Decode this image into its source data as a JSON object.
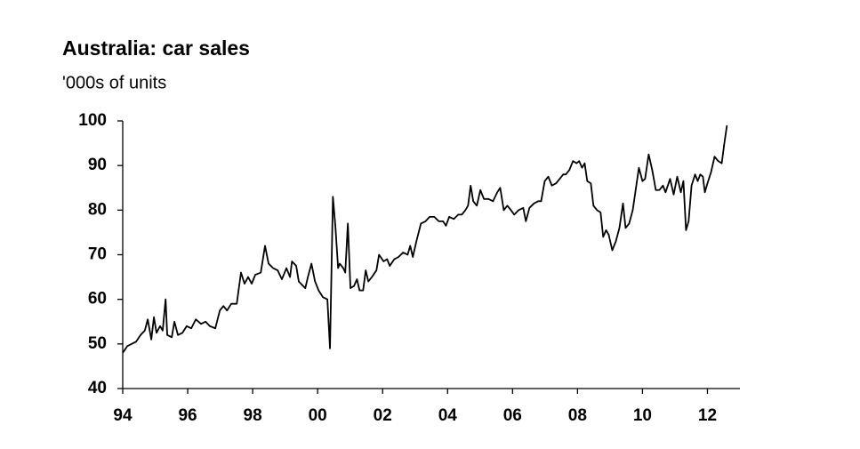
{
  "chart_data": {
    "type": "line",
    "title": "Australia: car sales",
    "subtitle": "'000s of units",
    "x": [
      1994.0,
      1994.14,
      1994.41,
      1994.55,
      1994.68,
      1994.77,
      1994.88,
      1994.96,
      1995.04,
      1995.15,
      1995.23,
      1995.32,
      1995.37,
      1995.51,
      1995.59,
      1995.7,
      1995.84,
      1995.97,
      1996.11,
      1996.25,
      1996.41,
      1996.55,
      1996.68,
      1996.85,
      1996.99,
      1997.1,
      1997.21,
      1997.34,
      1997.51,
      1997.64,
      1997.75,
      1997.86,
      1997.97,
      1998.08,
      1998.25,
      1998.38,
      1998.49,
      1998.63,
      1998.77,
      1998.9,
      1999.04,
      1999.15,
      1999.21,
      1999.34,
      1999.42,
      1999.62,
      1999.7,
      1999.81,
      1999.92,
      2000.03,
      2000.16,
      2000.3,
      2000.38,
      2000.47,
      2000.55,
      2000.63,
      2000.68,
      2000.79,
      2000.85,
      2000.93,
      2001.01,
      2001.12,
      2001.21,
      2001.29,
      2001.4,
      2001.48,
      2001.56,
      2001.67,
      2001.81,
      2001.89,
      2002.03,
      2002.14,
      2002.22,
      2002.36,
      2002.49,
      2002.63,
      2002.77,
      2002.85,
      2002.93,
      2003.04,
      2003.18,
      2003.32,
      2003.45,
      2003.59,
      2003.73,
      2003.86,
      2003.95,
      2004.05,
      2004.19,
      2004.33,
      2004.44,
      2004.55,
      2004.63,
      2004.71,
      2004.79,
      2004.9,
      2005.01,
      2005.12,
      2005.26,
      2005.4,
      2005.53,
      2005.62,
      2005.73,
      2005.84,
      2005.95,
      2006.05,
      2006.19,
      2006.33,
      2006.41,
      2006.52,
      2006.66,
      2006.79,
      2006.88,
      2006.99,
      2007.1,
      2007.21,
      2007.34,
      2007.45,
      2007.56,
      2007.64,
      2007.75,
      2007.86,
      2007.97,
      2008.05,
      2008.14,
      2008.22,
      2008.3,
      2008.41,
      2008.49,
      2008.6,
      2008.71,
      2008.79,
      2008.88,
      2008.96,
      2009.07,
      2009.18,
      2009.29,
      2009.4,
      2009.48,
      2009.59,
      2009.7,
      2009.78,
      2009.89,
      2010.0,
      2010.08,
      2010.19,
      2010.3,
      2010.41,
      2010.52,
      2010.63,
      2010.71,
      2010.85,
      2010.96,
      2011.07,
      2011.18,
      2011.26,
      2011.34,
      2011.42,
      2011.51,
      2011.62,
      2011.7,
      2011.78,
      2011.86,
      2011.92,
      2012.0,
      2012.11,
      2012.22,
      2012.33,
      2012.44,
      2012.52,
      2012.6
    ],
    "series": [
      {
        "color": "#000000",
        "values": [
          48,
          49.5,
          50.5,
          52,
          53,
          55.5,
          51,
          56,
          52.5,
          54,
          53,
          60,
          52,
          51.5,
          55,
          52,
          52.5,
          54,
          53.5,
          55.5,
          54.5,
          55,
          54,
          53.5,
          57.5,
          58.5,
          57.5,
          59,
          59,
          66,
          63.5,
          65,
          63.5,
          65.5,
          66,
          72,
          68,
          67,
          66.5,
          64.5,
          67,
          65,
          68.5,
          67.5,
          64,
          62.5,
          65,
          68,
          64,
          62,
          60.5,
          60,
          49,
          83,
          76,
          67,
          68,
          67,
          66,
          77,
          62.5,
          63,
          64.5,
          62,
          62,
          66.5,
          64,
          65,
          66.5,
          70,
          68.5,
          69,
          67.5,
          69,
          69.5,
          70.5,
          70,
          72,
          69.5,
          73,
          77,
          77.5,
          78.5,
          78.5,
          77.5,
          77.5,
          76.5,
          78.5,
          78,
          79,
          79,
          80,
          81,
          85.5,
          82,
          81,
          84.5,
          82.5,
          82.5,
          82,
          84,
          85,
          80,
          81,
          80,
          79,
          80,
          80.5,
          77.5,
          80.5,
          81.5,
          82,
          82,
          86.5,
          87.5,
          85.5,
          86,
          87,
          88,
          88,
          89,
          91,
          90.5,
          91,
          89.5,
          90.5,
          86.5,
          86,
          81,
          80,
          79.5,
          74,
          75.5,
          74.5,
          71,
          73,
          76,
          81.5,
          76,
          77,
          80,
          84,
          89.5,
          86.5,
          87,
          92.5,
          89,
          84.5,
          84.5,
          85.5,
          84,
          87,
          83.5,
          87.5,
          84,
          86.5,
          75.5,
          77.5,
          85.5,
          88,
          86.5,
          88,
          87.5,
          84,
          86,
          88.5,
          92,
          91,
          90.5,
          95,
          99
        ]
      }
    ],
    "xlim": [
      1994,
      2013
    ],
    "xticks": [
      {
        "value": 1994,
        "label": "94"
      },
      {
        "value": 1996,
        "label": "96"
      },
      {
        "value": 1998,
        "label": "98"
      },
      {
        "value": 2000,
        "label": "00"
      },
      {
        "value": 2002,
        "label": "02"
      },
      {
        "value": 2004,
        "label": "04"
      },
      {
        "value": 2006,
        "label": "06"
      },
      {
        "value": 2008,
        "label": "08"
      },
      {
        "value": 2010,
        "label": "10"
      },
      {
        "value": 2012,
        "label": "12"
      }
    ],
    "ylim": [
      40,
      100
    ],
    "yticks": [
      40,
      50,
      60,
      70,
      80,
      90,
      100
    ],
    "grid": false
  }
}
